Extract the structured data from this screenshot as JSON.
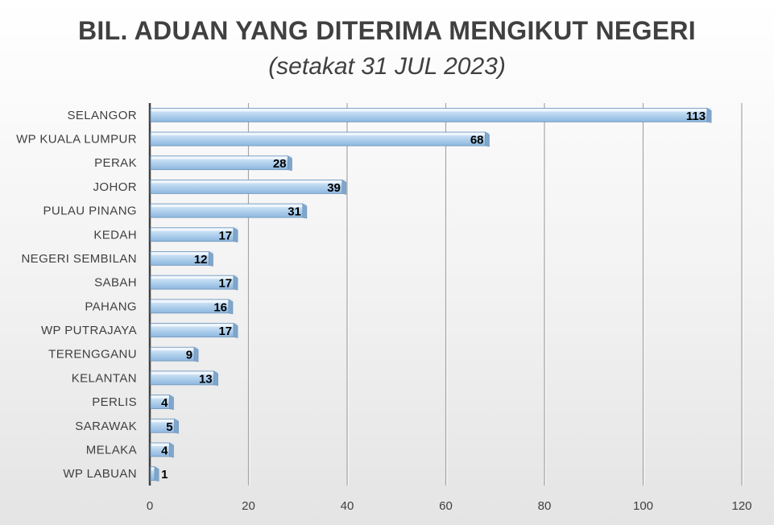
{
  "chart_data": {
    "type": "bar",
    "orientation": "horizontal",
    "title": "BIL. ADUAN YANG DITERIMA MENGIKUT NEGERI",
    "subtitle": "(setakat 31 JUL 2023)",
    "xlabel": "",
    "ylabel": "",
    "categories": [
      "SELANGOR",
      "WP KUALA LUMPUR",
      "PERAK",
      "JOHOR",
      "PULAU PINANG",
      "KEDAH",
      "NEGERI SEMBILAN",
      "SABAH",
      "PAHANG",
      "WP PUTRAJAYA",
      "TERENGGANU",
      "KELANTAN",
      "PERLIS",
      "SARAWAK",
      "MELAKA",
      "WP LABUAN"
    ],
    "values": [
      113,
      68,
      28,
      39,
      31,
      17,
      12,
      17,
      16,
      17,
      9,
      13,
      4,
      5,
      4,
      1
    ],
    "xlim": [
      0,
      120
    ],
    "xticks": [
      0,
      20,
      40,
      60,
      80,
      100,
      120
    ],
    "grid": true,
    "legend": "none",
    "data_labels": true,
    "bar_color": "#9cc3e5",
    "bar_edge_color": "#6f93b8"
  }
}
